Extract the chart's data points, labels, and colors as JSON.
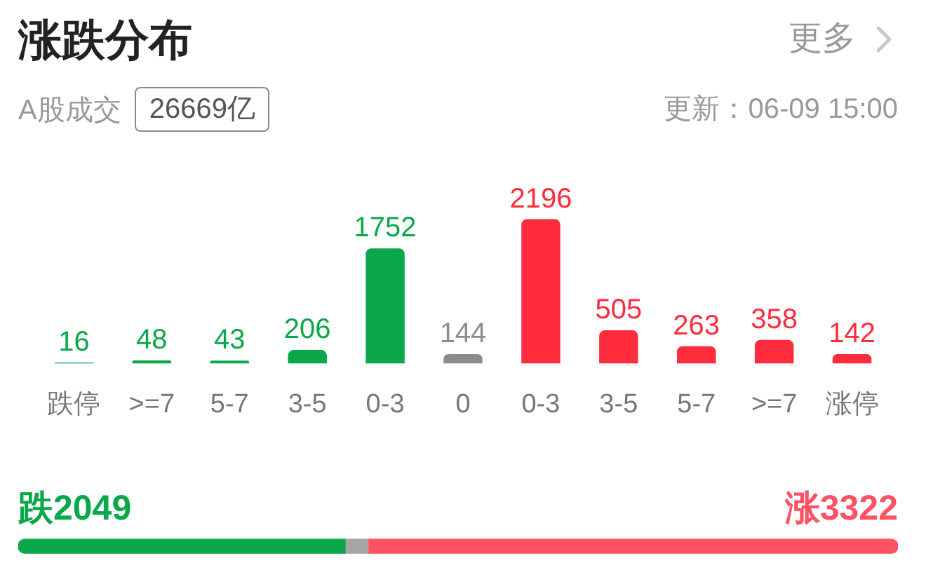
{
  "chart_data": [
    {
      "type": "bar",
      "title": "涨跌分布",
      "subtitle": "A股成交",
      "annotations": [
        "26669亿",
        "更新：06-09 15:00",
        "更多"
      ],
      "categories": [
        "跌停",
        ">=7",
        "5-7",
        "3-5",
        "0-3",
        "0",
        "0-3",
        "3-5",
        "5-7",
        ">=7",
        "涨停"
      ],
      "values": [
        16,
        48,
        43,
        206,
        1752,
        144,
        2196,
        505,
        263,
        358,
        142
      ],
      "colors": [
        "#0aa84a",
        "#0aa84a",
        "#0aa84a",
        "#0aa84a",
        "#0aa84a",
        "#8c8c8c",
        "#fe2c3c",
        "#fe2c3c",
        "#fe2c3c",
        "#fe2c3c",
        "#fe2c3c"
      ],
      "data_labels": true,
      "grid": false,
      "legend": false,
      "tick_labels": "x"
    },
    {
      "type": "bar",
      "orientation": "horizontal",
      "stacked": true,
      "categories": [
        null
      ],
      "series": [
        {
          "color": "#0aa84a",
          "values": [
            2049
          ],
          "value_labels": [
            "跌2049"
          ]
        },
        {
          "color": "#a6a6a6",
          "values": [
            144
          ],
          "value_labels": [
            null
          ]
        },
        {
          "color": "#fe5263",
          "values": [
            3322
          ],
          "value_labels": [
            "涨3322"
          ]
        }
      ],
      "xlim": [
        0,
        5515
      ],
      "grid": false,
      "legend": false,
      "tick_labels": false
    }
  ]
}
